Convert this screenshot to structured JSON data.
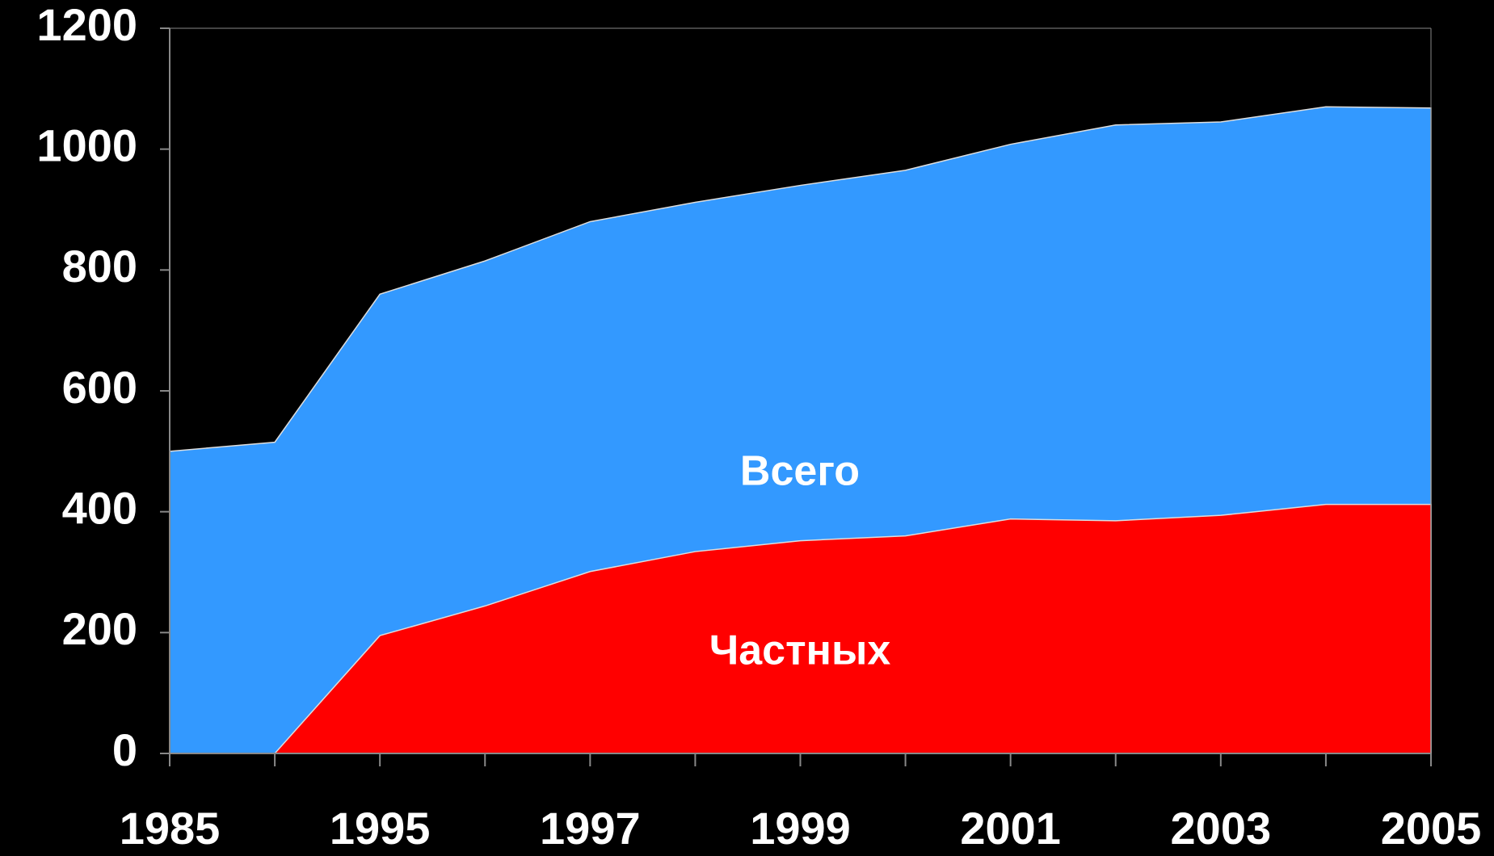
{
  "chart_data": {
    "type": "area",
    "categories": [
      "1985",
      null,
      "1995",
      null,
      "1997",
      null,
      "1999",
      null,
      "2001",
      null,
      "2003",
      null,
      "2005"
    ],
    "series": [
      {
        "name": "Всего",
        "color": "#3399ff",
        "values": [
          500,
          515,
          760,
          815,
          880,
          912,
          940,
          965,
          1008,
          1040,
          1045,
          1070,
          1068
        ]
      },
      {
        "name": "Частных",
        "color": "#ff0000",
        "values": [
          null,
          0,
          195,
          244,
          301,
          334,
          352,
          360,
          388,
          385,
          394,
          412,
          412
        ]
      }
    ],
    "ylim": [
      0,
      1200
    ],
    "yticks": [
      0,
      200,
      400,
      600,
      800,
      1000,
      1200
    ]
  }
}
